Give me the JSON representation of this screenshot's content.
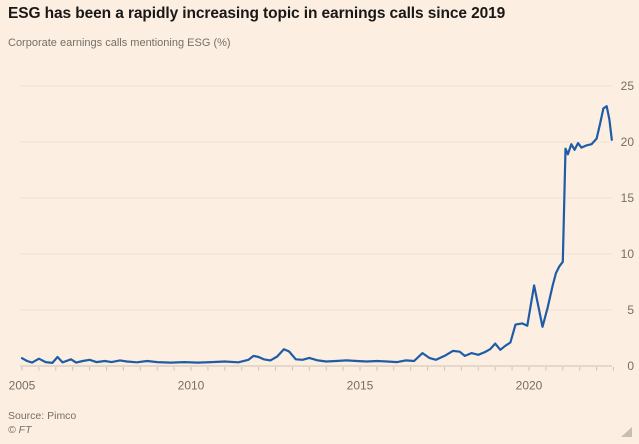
{
  "header": {
    "title": "ESG has been a rapidly increasing topic in earnings calls since 2019",
    "subtitle": "Corporate earnings calls mentioning ESG (%)"
  },
  "footer": {
    "source": "Source: Pimco",
    "copyright": "© FT"
  },
  "colors": {
    "background": "#FCEFE2",
    "line": "#1F5CA6",
    "grid": "#F0E2D1",
    "axis": "#CDC2B3",
    "text_muted": "#756E66",
    "title_text": "#1A1817"
  },
  "chart_data": {
    "type": "line",
    "title": "ESG has been a rapidly increasing topic in earnings calls since 2019",
    "subtitle": "Corporate earnings calls mentioning ESG (%)",
    "xlabel": "",
    "ylabel": "Corporate earnings calls mentioning ESG (%)",
    "xlim": [
      2005,
      2022.6
    ],
    "ylim": [
      0,
      25
    ],
    "x_ticks": [
      2005,
      2010,
      2015,
      2020
    ],
    "minor_x_tick_step": 0.5,
    "y_ticks": [
      0,
      5,
      10,
      15,
      20,
      25
    ],
    "grid": "horizontal",
    "legend": "none",
    "series": [
      {
        "name": "Corporate earnings calls mentioning ESG (%)",
        "points": [
          [
            2005.0,
            0.7
          ],
          [
            2005.15,
            0.45
          ],
          [
            2005.3,
            0.3
          ],
          [
            2005.5,
            0.65
          ],
          [
            2005.7,
            0.35
          ],
          [
            2005.9,
            0.28
          ],
          [
            2006.05,
            0.8
          ],
          [
            2006.2,
            0.32
          ],
          [
            2006.45,
            0.6
          ],
          [
            2006.6,
            0.3
          ],
          [
            2006.8,
            0.45
          ],
          [
            2007.0,
            0.55
          ],
          [
            2007.2,
            0.35
          ],
          [
            2007.45,
            0.45
          ],
          [
            2007.65,
            0.35
          ],
          [
            2007.9,
            0.5
          ],
          [
            2008.1,
            0.4
          ],
          [
            2008.4,
            0.33
          ],
          [
            2008.7,
            0.45
          ],
          [
            2009.0,
            0.35
          ],
          [
            2009.4,
            0.3
          ],
          [
            2009.8,
            0.35
          ],
          [
            2010.2,
            0.3
          ],
          [
            2010.6,
            0.35
          ],
          [
            2011.0,
            0.4
          ],
          [
            2011.4,
            0.33
          ],
          [
            2011.7,
            0.55
          ],
          [
            2011.85,
            0.9
          ],
          [
            2012.0,
            0.8
          ],
          [
            2012.15,
            0.6
          ],
          [
            2012.35,
            0.5
          ],
          [
            2012.55,
            0.85
          ],
          [
            2012.75,
            1.5
          ],
          [
            2012.9,
            1.3
          ],
          [
            2013.1,
            0.6
          ],
          [
            2013.3,
            0.55
          ],
          [
            2013.5,
            0.72
          ],
          [
            2013.75,
            0.5
          ],
          [
            2014.0,
            0.4
          ],
          [
            2014.3,
            0.45
          ],
          [
            2014.6,
            0.5
          ],
          [
            2014.9,
            0.45
          ],
          [
            2015.2,
            0.4
          ],
          [
            2015.5,
            0.45
          ],
          [
            2015.8,
            0.4
          ],
          [
            2016.1,
            0.35
          ],
          [
            2016.35,
            0.5
          ],
          [
            2016.6,
            0.45
          ],
          [
            2016.85,
            1.15
          ],
          [
            2017.05,
            0.72
          ],
          [
            2017.25,
            0.55
          ],
          [
            2017.5,
            0.9
          ],
          [
            2017.75,
            1.35
          ],
          [
            2017.95,
            1.28
          ],
          [
            2018.1,
            0.9
          ],
          [
            2018.3,
            1.15
          ],
          [
            2018.5,
            1.0
          ],
          [
            2018.7,
            1.25
          ],
          [
            2018.85,
            1.5
          ],
          [
            2019.0,
            2.0
          ],
          [
            2019.15,
            1.45
          ],
          [
            2019.3,
            1.8
          ],
          [
            2019.45,
            2.1
          ],
          [
            2019.6,
            3.7
          ],
          [
            2019.8,
            3.8
          ],
          [
            2019.95,
            3.6
          ],
          [
            2020.0,
            4.5
          ],
          [
            2020.15,
            7.2
          ],
          [
            2020.3,
            5.0
          ],
          [
            2020.4,
            3.5
          ],
          [
            2020.55,
            5.2
          ],
          [
            2020.7,
            7.2
          ],
          [
            2020.8,
            8.3
          ],
          [
            2020.9,
            8.9
          ],
          [
            2021.0,
            9.3
          ],
          [
            2021.08,
            19.4
          ],
          [
            2021.15,
            18.9
          ],
          [
            2021.25,
            19.8
          ],
          [
            2021.35,
            19.3
          ],
          [
            2021.45,
            19.9
          ],
          [
            2021.55,
            19.5
          ],
          [
            2021.7,
            19.7
          ],
          [
            2021.85,
            19.8
          ],
          [
            2022.0,
            20.3
          ],
          [
            2022.1,
            21.6
          ],
          [
            2022.2,
            23.0
          ],
          [
            2022.3,
            23.2
          ],
          [
            2022.38,
            22.0
          ],
          [
            2022.45,
            20.2
          ]
        ]
      }
    ]
  }
}
